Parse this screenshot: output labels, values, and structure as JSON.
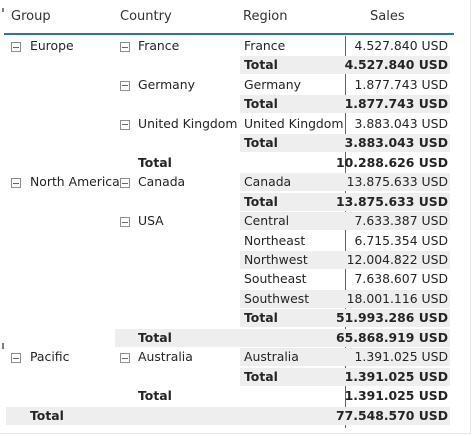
{
  "headers": {
    "group": "Group",
    "country": "Country",
    "region": "Region",
    "sales": "Sales"
  },
  "groups": [
    {
      "label": "Europe",
      "countries": [
        {
          "label": "France",
          "regions": [
            {
              "label": "France",
              "sales": "4.527.840 USD"
            }
          ],
          "total_label": "Total",
          "total": "4.527.840 USD"
        },
        {
          "label": "Germany",
          "regions": [
            {
              "label": "Germany",
              "sales": "1.877.743 USD"
            }
          ],
          "total_label": "Total",
          "total": "1.877.743 USD"
        },
        {
          "label": "United Kingdom",
          "regions": [
            {
              "label": "United Kingdom",
              "sales": "3.883.043 USD"
            }
          ],
          "total_label": "Total",
          "total": "3.883.043 USD"
        }
      ],
      "total_label": "Total",
      "total": "10.288.626 USD"
    },
    {
      "label": "North America",
      "countries": [
        {
          "label": "Canada",
          "regions": [
            {
              "label": "Canada",
              "sales": "13.875.633 USD"
            }
          ],
          "total_label": "Total",
          "total": "13.875.633 USD"
        },
        {
          "label": "USA",
          "regions": [
            {
              "label": "Central",
              "sales": "7.633.387 USD"
            },
            {
              "label": "Northeast",
              "sales": "6.715.354 USD"
            },
            {
              "label": "Northwest",
              "sales": "12.004.822 USD"
            },
            {
              "label": "Southeast",
              "sales": "7.638.607 USD"
            },
            {
              "label": "Southwest",
              "sales": "18.001.116 USD"
            }
          ],
          "total_label": "Total",
          "total": "51.993.286 USD"
        }
      ],
      "total_label": "Total",
      "total": "65.868.919 USD"
    },
    {
      "label": "Pacific",
      "countries": [
        {
          "label": "Australia",
          "regions": [
            {
              "label": "Australia",
              "sales": "1.391.025 USD"
            }
          ],
          "total_label": "Total",
          "total": "1.391.025 USD"
        }
      ],
      "total_label": "Total",
      "total": "1.391.025 USD"
    }
  ],
  "grand_total_label": "Total",
  "grand_total": "77.548.570 USD"
}
